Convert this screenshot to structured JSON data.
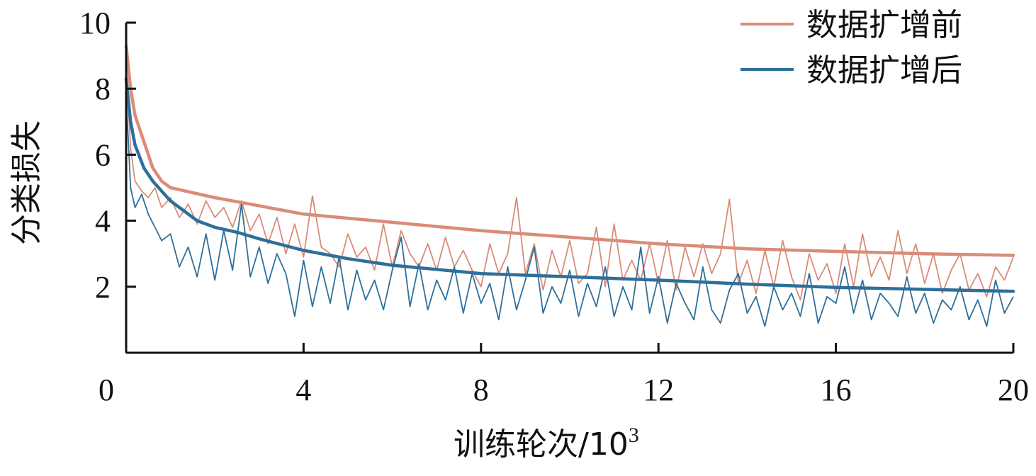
{
  "chart_data": {
    "type": "line",
    "title": "",
    "xlabel": "训练轮次/10",
    "xlabel_superscript": "3",
    "ylabel": "分类损失",
    "xlim": [
      0,
      20
    ],
    "ylim": [
      0,
      10
    ],
    "x_ticks": [
      "0",
      "4",
      "8",
      "12",
      "16",
      "20"
    ],
    "y_ticks": [
      "2",
      "4",
      "6",
      "8",
      "10"
    ],
    "legend_position": "top-right",
    "series": [
      {
        "name": "数据扩增前",
        "color": "#d98c78",
        "smooth": {
          "x": [
            0,
            0.1,
            0.2,
            0.4,
            0.6,
            0.8,
            1.0,
            1.5,
            2,
            3,
            4,
            6,
            8,
            10,
            12,
            14,
            16,
            18,
            20
          ],
          "y": [
            9.3,
            8.0,
            7.2,
            6.4,
            5.6,
            5.2,
            5.0,
            4.85,
            4.7,
            4.45,
            4.2,
            3.95,
            3.7,
            3.5,
            3.3,
            3.15,
            3.07,
            3.0,
            2.95
          ]
        },
        "raw": {
          "x": [
            0,
            0.1,
            0.2,
            0.35,
            0.5,
            0.65,
            0.8,
            1.0,
            1.2,
            1.4,
            1.6,
            1.8,
            2.0,
            2.2,
            2.4,
            2.6,
            2.8,
            3.0,
            3.2,
            3.4,
            3.6,
            3.8,
            4.0,
            4.2,
            4.4,
            4.6,
            4.8,
            5.0,
            5.2,
            5.4,
            5.6,
            5.8,
            6.0,
            6.2,
            6.4,
            6.6,
            6.8,
            7.0,
            7.2,
            7.4,
            7.6,
            7.8,
            8.0,
            8.2,
            8.4,
            8.6,
            8.8,
            9.0,
            9.2,
            9.4,
            9.6,
            9.8,
            10.0,
            10.2,
            10.4,
            10.6,
            10.8,
            11.0,
            11.2,
            11.4,
            11.6,
            11.8,
            12.0,
            12.2,
            12.4,
            12.6,
            12.8,
            13.0,
            13.2,
            13.4,
            13.6,
            13.8,
            14.0,
            14.2,
            14.4,
            14.6,
            14.8,
            15.0,
            15.2,
            15.4,
            15.6,
            15.8,
            16.0,
            16.2,
            16.4,
            16.6,
            16.8,
            17.0,
            17.2,
            17.4,
            17.6,
            17.8,
            18.0,
            18.2,
            18.4,
            18.6,
            18.8,
            19.0,
            19.2,
            19.4,
            19.6,
            19.8,
            20.0
          ],
          "y": [
            8.8,
            6.2,
            5.2,
            4.9,
            4.7,
            5.0,
            4.4,
            4.7,
            4.1,
            4.5,
            3.9,
            4.6,
            4.1,
            4.4,
            3.8,
            4.6,
            3.7,
            4.2,
            3.3,
            4.1,
            3.0,
            3.9,
            2.9,
            4.75,
            3.2,
            3.0,
            2.6,
            3.6,
            2.9,
            3.2,
            2.5,
            3.9,
            2.6,
            3.7,
            3.0,
            2.6,
            3.3,
            2.5,
            3.5,
            2.6,
            3.1,
            2.5,
            2.0,
            3.3,
            2.4,
            3.0,
            4.7,
            2.4,
            3.3,
            1.9,
            3.1,
            2.3,
            3.4,
            2.1,
            2.4,
            3.8,
            2.0,
            3.9,
            2.2,
            2.8,
            2.2,
            3.3,
            2.1,
            3.4,
            1.9,
            3.2,
            2.3,
            3.3,
            2.4,
            3.0,
            4.65,
            2.1,
            2.8,
            1.8,
            3.1,
            2.0,
            3.4,
            2.3,
            1.6,
            3.0,
            2.2,
            2.7,
            1.8,
            3.3,
            2.0,
            3.6,
            2.3,
            2.9,
            2.2,
            3.7,
            2.4,
            3.3,
            2.1,
            3.0,
            1.8,
            2.5,
            3.0,
            1.9,
            2.4,
            1.7,
            2.6,
            2.2,
            2.9
          ]
        }
      },
      {
        "name": "数据扩增后",
        "color": "#2e6f9a",
        "smooth": {
          "x": [
            0,
            0.1,
            0.2,
            0.4,
            0.6,
            0.8,
            1.0,
            1.3,
            1.6,
            2,
            2.5,
            3,
            4,
            5,
            6,
            8,
            10,
            12,
            14,
            16,
            18,
            20
          ],
          "y": [
            8.3,
            7.0,
            6.3,
            5.6,
            5.2,
            4.9,
            4.6,
            4.3,
            4.0,
            3.8,
            3.65,
            3.45,
            3.1,
            2.85,
            2.65,
            2.4,
            2.3,
            2.2,
            2.08,
            1.98,
            1.92,
            1.86
          ]
        },
        "raw": {
          "x": [
            0,
            0.1,
            0.2,
            0.35,
            0.5,
            0.65,
            0.8,
            1.0,
            1.2,
            1.4,
            1.6,
            1.8,
            2.0,
            2.2,
            2.4,
            2.6,
            2.8,
            3.0,
            3.2,
            3.4,
            3.6,
            3.8,
            4.0,
            4.2,
            4.4,
            4.6,
            4.8,
            5.0,
            5.2,
            5.4,
            5.6,
            5.8,
            6.0,
            6.2,
            6.4,
            6.6,
            6.8,
            7.0,
            7.2,
            7.4,
            7.6,
            7.8,
            8.0,
            8.2,
            8.4,
            8.6,
            8.8,
            9.0,
            9.2,
            9.4,
            9.6,
            9.8,
            10.0,
            10.2,
            10.4,
            10.6,
            10.8,
            11.0,
            11.2,
            11.4,
            11.6,
            11.8,
            12.0,
            12.2,
            12.4,
            12.6,
            12.8,
            13.0,
            13.2,
            13.4,
            13.6,
            13.8,
            14.0,
            14.2,
            14.4,
            14.6,
            14.8,
            15.0,
            15.2,
            15.4,
            15.6,
            15.8,
            16.0,
            16.2,
            16.4,
            16.6,
            16.8,
            17.0,
            17.2,
            17.4,
            17.6,
            17.8,
            18.0,
            18.2,
            18.4,
            18.6,
            18.8,
            19.0,
            19.2,
            19.4,
            19.6,
            19.8,
            20.0
          ],
          "y": [
            7.8,
            5.0,
            4.4,
            4.8,
            4.2,
            3.8,
            3.4,
            3.6,
            2.6,
            3.2,
            2.3,
            3.6,
            2.2,
            3.7,
            2.5,
            4.5,
            2.3,
            3.2,
            2.1,
            3.0,
            2.4,
            1.1,
            2.8,
            1.4,
            2.6,
            1.5,
            2.9,
            1.3,
            2.5,
            1.6,
            2.2,
            1.3,
            2.5,
            3.5,
            1.4,
            2.7,
            1.3,
            2.2,
            1.6,
            2.6,
            1.2,
            2.4,
            1.5,
            2.1,
            1.0,
            2.6,
            1.3,
            2.2,
            3.2,
            1.2,
            2.0,
            1.5,
            2.5,
            1.1,
            2.1,
            1.4,
            2.6,
            1.1,
            2.0,
            1.3,
            3.2,
            1.2,
            2.3,
            0.9,
            2.1,
            1.5,
            1.0,
            2.6,
            1.3,
            0.9,
            1.9,
            2.4,
            1.2,
            1.7,
            0.8,
            2.0,
            1.3,
            1.8,
            1.1,
            2.4,
            0.9,
            1.7,
            1.5,
            2.6,
            1.2,
            2.2,
            1.0,
            1.8,
            1.5,
            1.1,
            2.3,
            1.2,
            1.8,
            0.9,
            1.6,
            1.3,
            2.0,
            1.0,
            1.6,
            0.8,
            2.2,
            1.2,
            1.7
          ]
        }
      }
    ]
  }
}
